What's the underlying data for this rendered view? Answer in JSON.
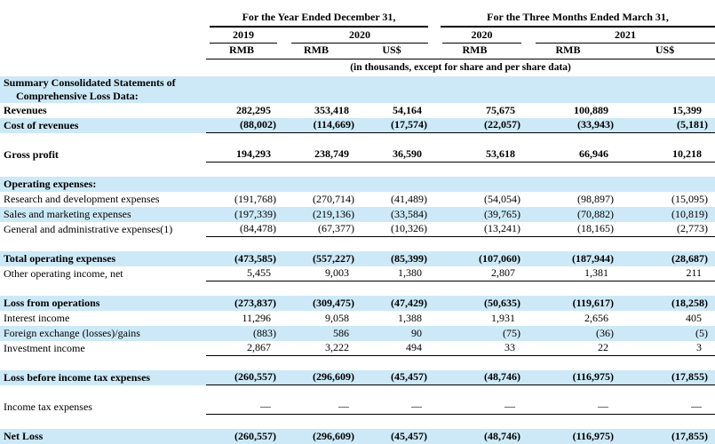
{
  "colors": {
    "row_highlight": "#cde9f7",
    "ink": "#000000"
  },
  "header": {
    "groups": [
      {
        "label": "For the Year Ended December 31,",
        "span": 3
      },
      {
        "label": "For the Three Months Ended March 31,",
        "span": 3
      }
    ],
    "years": [
      {
        "label": "2019",
        "span": 1
      },
      {
        "label": "2020",
        "span": 2
      },
      {
        "label": "2020",
        "span": 1
      },
      {
        "label": "2021",
        "span": 2
      }
    ],
    "currencies": [
      "RMB",
      "RMB",
      "US$",
      "RMB",
      "RMB",
      "US$"
    ],
    "units_note": "(in thousands, except for share and per share data)"
  },
  "rows": [
    {
      "type": "section",
      "label": "Summary Consolidated Statements of"
    },
    {
      "type": "section2",
      "label": "Comprehensive Loss Data:"
    },
    {
      "label": "Revenues",
      "bold": true,
      "hl": false,
      "rule": false,
      "values": [
        "282,295",
        "353,418",
        "54,164",
        "75,675",
        "100,889",
        "15,399"
      ]
    },
    {
      "label": "Cost of revenues",
      "bold": true,
      "hl": true,
      "rule": true,
      "values": [
        "(88,002)",
        "(114,669)",
        "(17,574)",
        "(22,057)",
        "(33,943)",
        "(5,181)"
      ]
    },
    {
      "type": "spacer"
    },
    {
      "label": "Gross profit",
      "bold": true,
      "hl": false,
      "rule": true,
      "values": [
        "194,293",
        "238,749",
        "36,590",
        "53,618",
        "66,946",
        "10,218"
      ]
    },
    {
      "type": "spacer"
    },
    {
      "label": "Operating expenses:",
      "bold": true,
      "hl": true,
      "rule": false,
      "values": [
        "",
        "",
        "",
        "",
        "",
        ""
      ]
    },
    {
      "label": "Research and development expenses",
      "bold": false,
      "hl": false,
      "rule": false,
      "values": [
        "(191,768)",
        "(270,714)",
        "(41,489)",
        "(54,054)",
        "(98,897)",
        "(15,095)"
      ]
    },
    {
      "label": "Sales and marketing expenses",
      "bold": false,
      "hl": true,
      "rule": false,
      "values": [
        "(197,339)",
        "(219,136)",
        "(33,584)",
        "(39,765)",
        "(70,882)",
        "(10,819)"
      ]
    },
    {
      "label": "General and administrative expenses(1)",
      "bold": false,
      "hl": false,
      "rule": true,
      "values": [
        "(84,478)",
        "(67,377)",
        "(10,326)",
        "(13,241)",
        "(18,165)",
        "(2,773)"
      ]
    },
    {
      "type": "spacer"
    },
    {
      "label": "Total operating expenses",
      "bold": true,
      "hl": true,
      "rule": false,
      "values": [
        "(473,585)",
        "(557,227)",
        "(85,399)",
        "(107,060)",
        "(187,944)",
        "(28,687)"
      ]
    },
    {
      "label": "Other operating income, net",
      "bold": false,
      "hl": false,
      "rule": true,
      "values": [
        "5,455",
        "9,003",
        "1,380",
        "2,807",
        "1,381",
        "211"
      ]
    },
    {
      "type": "spacer"
    },
    {
      "label": "Loss from operations",
      "bold": true,
      "hl": true,
      "rule": false,
      "values": [
        "(273,837)",
        "(309,475)",
        "(47,429)",
        "(50,635)",
        "(119,617)",
        "(18,258)"
      ]
    },
    {
      "label": "Interest income",
      "bold": false,
      "hl": false,
      "rule": false,
      "values": [
        "11,296",
        "9,058",
        "1,388",
        "1,931",
        "2,656",
        "405"
      ]
    },
    {
      "label": "Foreign exchange (losses)/gains",
      "bold": false,
      "hl": true,
      "rule": false,
      "values": [
        "(883)",
        "586",
        "90",
        "(75)",
        "(36)",
        "(5)"
      ]
    },
    {
      "label": "Investment income",
      "bold": false,
      "hl": false,
      "rule": true,
      "values": [
        "2,867",
        "3,222",
        "494",
        "33",
        "22",
        "3"
      ]
    },
    {
      "type": "spacer"
    },
    {
      "label": "Loss before income tax expenses",
      "bold": true,
      "hl": true,
      "rule": true,
      "values": [
        "(260,557)",
        "(296,609)",
        "(45,457)",
        "(48,746)",
        "(116,975)",
        "(17,855)"
      ]
    },
    {
      "type": "spacer"
    },
    {
      "label": "Income tax expenses",
      "bold": false,
      "hl": false,
      "rule": true,
      "values": [
        "—",
        "—",
        "—",
        "—",
        "—",
        "—"
      ]
    },
    {
      "type": "spacer"
    },
    {
      "label": "Net Loss",
      "bold": true,
      "hl": true,
      "rule": false,
      "values": [
        "(260,557)",
        "(296,609)",
        "(45,457)",
        "(48,746)",
        "(116,975)",
        "(17,855)"
      ]
    }
  ]
}
